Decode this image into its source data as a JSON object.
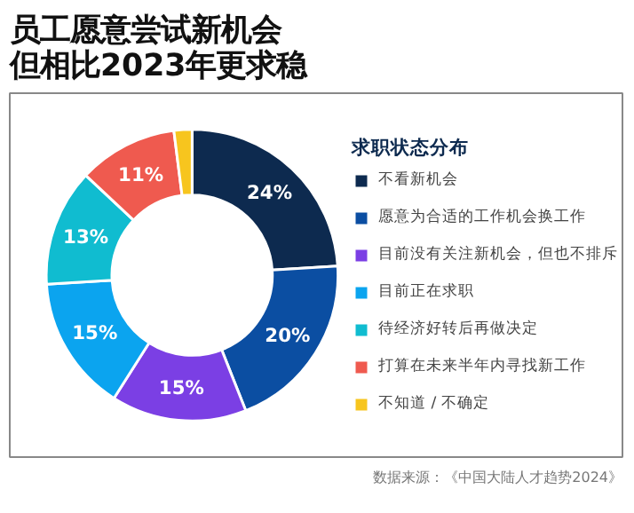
{
  "chart_data": {
    "type": "donut",
    "title": "员工愿意尝试新机会但相比2023年更求稳",
    "legend_title": "求职状态分布",
    "categories": [
      "不看新机会",
      "愿意为合适的工作机会换工作",
      "目前没有关注新机会，但也不排斥",
      "目前正在求职",
      "待经济好转后再做决定",
      "打算在未来半年内寻找新工作",
      "不知道 / 不确定"
    ],
    "values": [
      24,
      20,
      15,
      15,
      13,
      11,
      2
    ],
    "value_labels": [
      "24%",
      "20%",
      "15%",
      "15%",
      "13%",
      "11%",
      null
    ],
    "colors": [
      "#0d2a4f",
      "#0b4ea2",
      "#7b3fe4",
      "#0ba4ef",
      "#10bcd0",
      "#ef5a4f",
      "#f7c51e"
    ],
    "legend": "right",
    "annotations": [
      "数据来源：《中国大陆人才趋势2024》"
    ]
  }
}
